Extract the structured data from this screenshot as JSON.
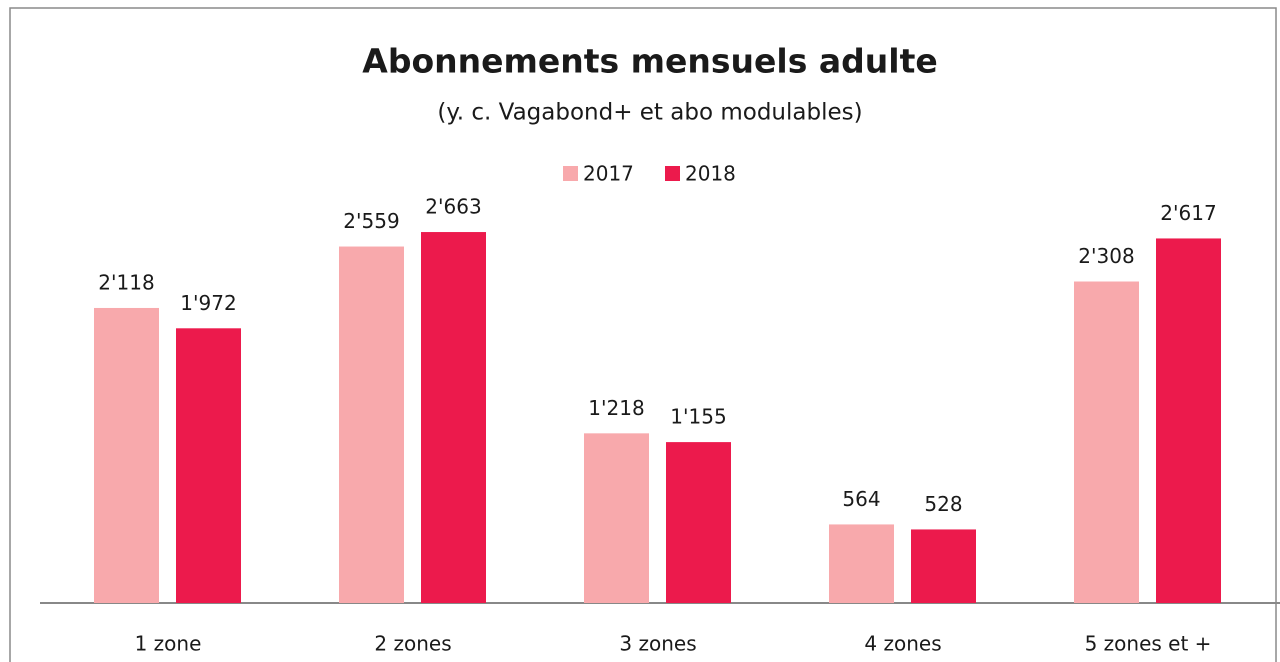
{
  "chart_data": {
    "type": "bar",
    "title": "Abonnements mensuels adulte",
    "subtitle": "(y. c. Vagabond+ et abo modulables)",
    "categories": [
      "1 zone",
      "2 zones",
      "3 zones",
      "4 zones",
      "5 zones et +"
    ],
    "series": [
      {
        "name": "2017",
        "color": "#f8a9ac",
        "values": [
          2118,
          2559,
          1218,
          564,
          2308
        ],
        "value_labels": [
          "2'118",
          "2'559",
          "1'218",
          "564",
          "2'308"
        ]
      },
      {
        "name": "2018",
        "color": "#ec1a4c",
        "values": [
          1972,
          2663,
          1155,
          528,
          2617
        ],
        "value_labels": [
          "1'972",
          "2'663",
          "1'155",
          "528",
          "2'617"
        ]
      }
    ]
  }
}
